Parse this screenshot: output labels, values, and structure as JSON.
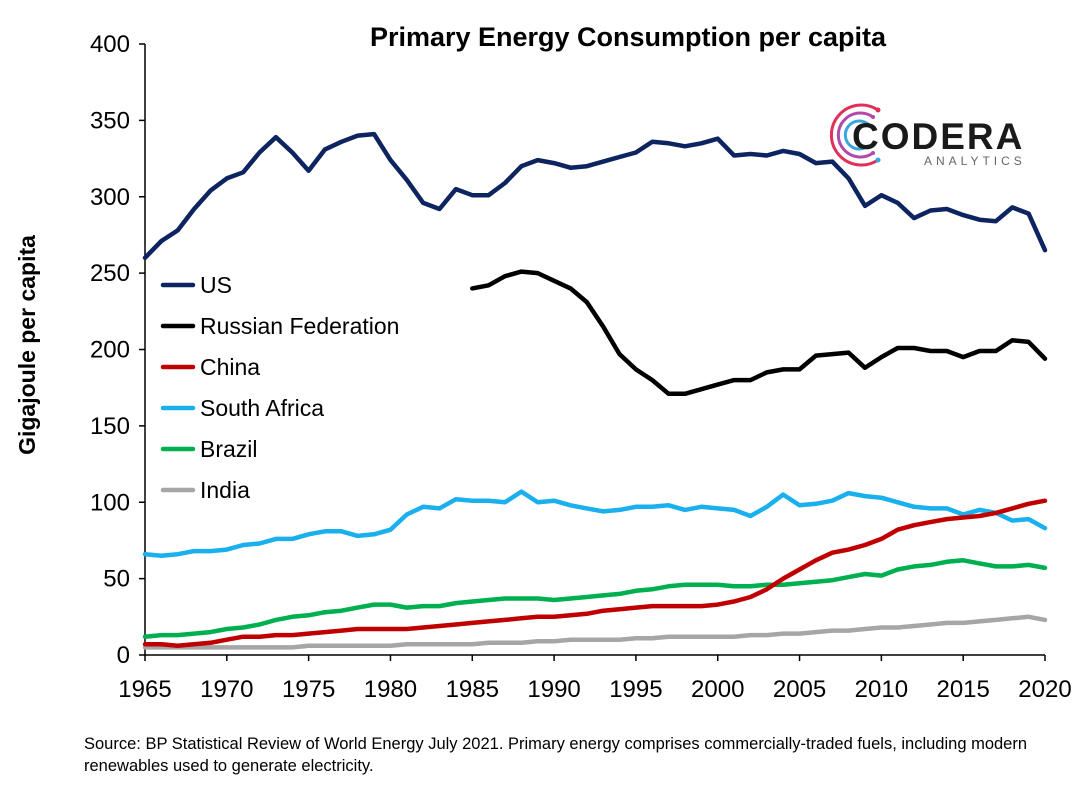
{
  "chart_data": {
    "type": "line",
    "title": "Primary Energy Consumption per capita",
    "ylabel": "Gigajoule per capita",
    "xlabel": "",
    "xlim": [
      1965,
      2020
    ],
    "ylim": [
      0,
      400
    ],
    "xticks": [
      1965,
      1970,
      1975,
      1980,
      1985,
      1990,
      1995,
      2000,
      2005,
      2010,
      2015,
      2020
    ],
    "yticks": [
      0,
      50,
      100,
      150,
      200,
      250,
      300,
      350,
      400
    ],
    "grid": false,
    "legend_position": "left",
    "series": [
      {
        "name": "US",
        "color": "#0d2460",
        "x_start": 1965,
        "values": [
          260,
          271,
          278,
          292,
          304,
          312,
          316,
          329,
          339,
          329,
          317,
          331,
          336,
          340,
          341,
          324,
          311,
          296,
          292,
          305,
          301,
          301,
          309,
          320,
          324,
          322,
          319,
          320,
          323,
          326,
          329,
          336,
          335,
          333,
          335,
          338,
          327,
          328,
          327,
          330,
          328,
          322,
          323,
          312,
          294,
          301,
          296,
          286,
          291,
          292,
          288,
          285,
          284,
          293,
          289,
          265
        ]
      },
      {
        "name": "Russian Federation",
        "color": "#000000",
        "x_start": 1985,
        "values": [
          240,
          242,
          248,
          251,
          250,
          245,
          240,
          231,
          215,
          197,
          187,
          180,
          171,
          171,
          174,
          177,
          180,
          180,
          185,
          187,
          187,
          196,
          197,
          198,
          188,
          195,
          201,
          201,
          199,
          199,
          195,
          199,
          199,
          206,
          205,
          194
        ]
      },
      {
        "name": "China",
        "color": "#c00000",
        "x_start": 1965,
        "values": [
          7,
          7,
          6,
          7,
          8,
          10,
          12,
          12,
          13,
          13,
          14,
          15,
          16,
          17,
          17,
          17,
          17,
          18,
          19,
          20,
          21,
          22,
          23,
          24,
          25,
          25,
          26,
          27,
          29,
          30,
          31,
          32,
          32,
          32,
          32,
          33,
          35,
          38,
          43,
          50,
          56,
          62,
          67,
          69,
          72,
          76,
          82,
          85,
          87,
          89,
          90,
          91,
          93,
          96,
          99,
          101
        ]
      },
      {
        "name": "South Africa",
        "color": "#1ab0ee",
        "x_start": 1965,
        "values": [
          66,
          65,
          66,
          68,
          68,
          69,
          72,
          73,
          76,
          76,
          79,
          81,
          81,
          78,
          79,
          82,
          92,
          97,
          96,
          102,
          101,
          101,
          100,
          107,
          100,
          101,
          98,
          96,
          94,
          95,
          97,
          97,
          98,
          95,
          97,
          96,
          95,
          91,
          97,
          105,
          98,
          99,
          101,
          106,
          104,
          103,
          100,
          97,
          96,
          96,
          92,
          95,
          93,
          88,
          89,
          83
        ]
      },
      {
        "name": "Brazil",
        "color": "#00b050",
        "x_start": 1965,
        "values": [
          12,
          13,
          13,
          14,
          15,
          17,
          18,
          20,
          23,
          25,
          26,
          28,
          29,
          31,
          33,
          33,
          31,
          32,
          32,
          34,
          35,
          36,
          37,
          37,
          37,
          36,
          37,
          38,
          39,
          40,
          42,
          43,
          45,
          46,
          46,
          46,
          45,
          45,
          46,
          46,
          47,
          48,
          49,
          51,
          53,
          52,
          56,
          58,
          59,
          61,
          62,
          60,
          58,
          58,
          59,
          57
        ]
      },
      {
        "name": "India",
        "color": "#a6a6a6",
        "x_start": 1965,
        "values": [
          5,
          5,
          5,
          5,
          5,
          5,
          5,
          5,
          5,
          5,
          6,
          6,
          6,
          6,
          6,
          6,
          7,
          7,
          7,
          7,
          7,
          8,
          8,
          8,
          9,
          9,
          10,
          10,
          10,
          10,
          11,
          11,
          12,
          12,
          12,
          12,
          12,
          13,
          13,
          14,
          14,
          15,
          16,
          16,
          17,
          18,
          18,
          19,
          20,
          21,
          21,
          22,
          23,
          24,
          25,
          23
        ]
      }
    ]
  },
  "source_note": "Source: BP Statistical Review of World Energy July 2021. Primary energy comprises commercially-traded fuels, including modern renewables used to generate electricity.",
  "logo": {
    "name": "CODERA",
    "tagline": "ANALYTICS",
    "icon": "circuit-c-icon"
  }
}
